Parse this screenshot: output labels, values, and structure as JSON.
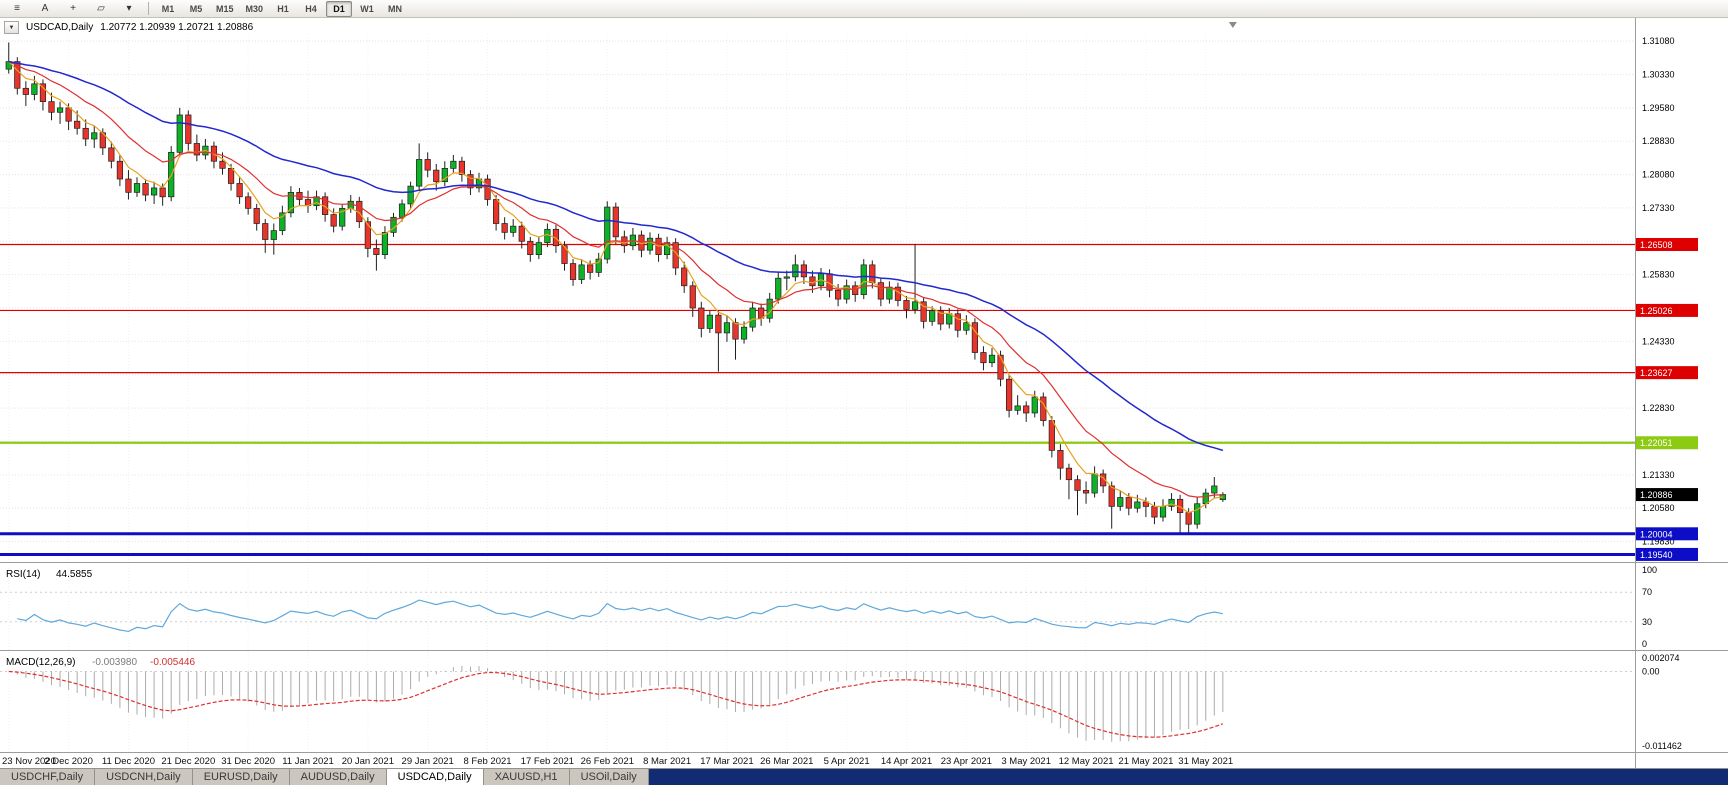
{
  "toolbar": {
    "icons": [
      {
        "name": "menu-icon",
        "glyph": "≡"
      },
      {
        "name": "cursor-a-icon",
        "glyph": "A"
      },
      {
        "name": "crosshair-icon",
        "glyph": "+"
      },
      {
        "name": "draw-tools-icon",
        "glyph": "▱"
      },
      {
        "name": "dropdown-caret-icon",
        "glyph": "▾"
      }
    ],
    "timeframes": [
      {
        "label": "M1",
        "active": false
      },
      {
        "label": "M5",
        "active": false
      },
      {
        "label": "M15",
        "active": false
      },
      {
        "label": "M30",
        "active": false
      },
      {
        "label": "H1",
        "active": false
      },
      {
        "label": "H4",
        "active": false
      },
      {
        "label": "D1",
        "active": true
      },
      {
        "label": "W1",
        "active": false
      },
      {
        "label": "MN",
        "active": false
      }
    ]
  },
  "chart": {
    "dropdown_glyph": "▼",
    "title_symbol": "USDCAD,Daily",
    "ohlc": "1.20772 1.20939 1.20721 1.20886"
  },
  "chart_data": {
    "type": "candlestick",
    "symbol": "USDCAD",
    "timeframe": "Daily",
    "title": "USDCAD,Daily",
    "current_bar": {
      "open": 1.20772,
      "high": 1.20939,
      "low": 1.20721,
      "close": 1.20886
    },
    "price_axis": {
      "min": 1.1937,
      "max": 1.316,
      "ticks": [
        "1.31080",
        "1.30330",
        "1.29580",
        "1.28830",
        "1.28080",
        "1.27330",
        "1.26580",
        "1.25830",
        "1.25080",
        "1.24330",
        "1.23580",
        "1.22830",
        "1.22080",
        "1.21330",
        "1.20580",
        "1.19830"
      ]
    },
    "x_labels": [
      "23 Nov 2020",
      "2 Dec 2020",
      "11 Dec 2020",
      "21 Dec 2020",
      "31 Dec 2020",
      "11 Jan 2021",
      "20 Jan 2021",
      "29 Jan 2021",
      "8 Feb 2021",
      "17 Feb 2021",
      "26 Feb 2021",
      "8 Mar 2021",
      "17 Mar 2021",
      "26 Mar 2021",
      "5 Apr 2021",
      "14 Apr 2021",
      "23 Apr 2021",
      "3 May 2021",
      "12 May 2021",
      "21 May 2021",
      "31 May 2021"
    ],
    "bars_per_label": 7,
    "up_color": "#0DB226",
    "down_color": "#E8352B",
    "wick_color": "#1f1f1f",
    "candles": [
      [
        1.3045,
        1.3105,
        1.3035,
        1.3062
      ],
      [
        1.3062,
        1.3072,
        1.2988,
        1.3002
      ],
      [
        1.3002,
        1.3018,
        1.2962,
        1.2988
      ],
      [
        1.2988,
        1.303,
        1.2975,
        1.3012
      ],
      [
        1.3012,
        1.3022,
        1.2952,
        1.2972
      ],
      [
        1.2972,
        1.2992,
        1.293,
        1.2948
      ],
      [
        1.2948,
        1.2972,
        1.2922,
        1.2958
      ],
      [
        1.2958,
        1.2968,
        1.2908,
        1.2928
      ],
      [
        1.2928,
        1.2952,
        1.2898,
        1.2912
      ],
      [
        1.2912,
        1.2932,
        1.2872,
        1.2888
      ],
      [
        1.2888,
        1.2918,
        1.2868,
        1.2902
      ],
      [
        1.2902,
        1.2912,
        1.2852,
        1.2868
      ],
      [
        1.2868,
        1.2882,
        1.2822,
        1.2838
      ],
      [
        1.2838,
        1.2852,
        1.2782,
        1.2798
      ],
      [
        1.2798,
        1.2818,
        1.2752,
        1.2768
      ],
      [
        1.2768,
        1.2802,
        1.2758,
        1.2788
      ],
      [
        1.2788,
        1.2798,
        1.2748,
        1.2762
      ],
      [
        1.2762,
        1.2792,
        1.2742,
        1.2778
      ],
      [
        1.2778,
        1.2788,
        1.2738,
        1.2758
      ],
      [
        1.2758,
        1.2872,
        1.2748,
        1.2858
      ],
      [
        1.2858,
        1.2958,
        1.2848,
        1.2942
      ],
      [
        1.2942,
        1.2952,
        1.2862,
        1.2878
      ],
      [
        1.2878,
        1.2898,
        1.2838,
        1.2852
      ],
      [
        1.2852,
        1.2888,
        1.2842,
        1.2872
      ],
      [
        1.2872,
        1.2882,
        1.2822,
        1.2838
      ],
      [
        1.2838,
        1.2858,
        1.2808,
        1.2822
      ],
      [
        1.2822,
        1.2832,
        1.2772,
        1.2788
      ],
      [
        1.2788,
        1.2802,
        1.2742,
        1.2758
      ],
      [
        1.2758,
        1.2768,
        1.2718,
        1.2732
      ],
      [
        1.2732,
        1.2742,
        1.2682,
        1.2698
      ],
      [
        1.2698,
        1.2708,
        1.2632,
        1.2662
      ],
      [
        1.2662,
        1.2698,
        1.2628,
        1.2682
      ],
      [
        1.2682,
        1.2738,
        1.2672,
        1.2722
      ],
      [
        1.2722,
        1.2782,
        1.2712,
        1.2768
      ],
      [
        1.2768,
        1.2778,
        1.2738,
        1.2752
      ],
      [
        1.2752,
        1.2772,
        1.2722,
        1.2738
      ],
      [
        1.2738,
        1.2772,
        1.2728,
        1.2758
      ],
      [
        1.2758,
        1.2768,
        1.2702,
        1.2718
      ],
      [
        1.2718,
        1.2732,
        1.2678,
        1.2692
      ],
      [
        1.2692,
        1.2742,
        1.2682,
        1.2732
      ],
      [
        1.2732,
        1.2762,
        1.2722,
        1.2748
      ],
      [
        1.2748,
        1.2758,
        1.2688,
        1.2702
      ],
      [
        1.2702,
        1.2712,
        1.2622,
        1.2642
      ],
      [
        1.2642,
        1.2662,
        1.2592,
        1.2628
      ],
      [
        1.2628,
        1.2692,
        1.2618,
        1.2678
      ],
      [
        1.2678,
        1.2722,
        1.2668,
        1.2712
      ],
      [
        1.2712,
        1.2752,
        1.2702,
        1.2742
      ],
      [
        1.2742,
        1.2792,
        1.2732,
        1.2782
      ],
      [
        1.2782,
        1.2878,
        1.2772,
        1.2842
      ],
      [
        1.2842,
        1.2858,
        1.2802,
        1.2818
      ],
      [
        1.2818,
        1.2832,
        1.2772,
        1.2792
      ],
      [
        1.2792,
        1.2838,
        1.2782,
        1.2822
      ],
      [
        1.2822,
        1.2852,
        1.2812,
        1.2838
      ],
      [
        1.2838,
        1.2848,
        1.2792,
        1.2808
      ],
      [
        1.2808,
        1.2818,
        1.2762,
        1.2778
      ],
      [
        1.2778,
        1.2812,
        1.2768,
        1.2798
      ],
      [
        1.2798,
        1.2808,
        1.2738,
        1.2752
      ],
      [
        1.2752,
        1.2762,
        1.2682,
        1.2698
      ],
      [
        1.2698,
        1.2712,
        1.2662,
        1.2678
      ],
      [
        1.2678,
        1.2708,
        1.2668,
        1.2692
      ],
      [
        1.2692,
        1.2702,
        1.2642,
        1.2658
      ],
      [
        1.2658,
        1.2668,
        1.2612,
        1.2628
      ],
      [
        1.2628,
        1.2668,
        1.2618,
        1.2655
      ],
      [
        1.2655,
        1.2698,
        1.2645,
        1.2685
      ],
      [
        1.2685,
        1.2695,
        1.2632,
        1.2648
      ],
      [
        1.2648,
        1.2658,
        1.2592,
        1.2608
      ],
      [
        1.2608,
        1.2618,
        1.2558,
        1.2572
      ],
      [
        1.2572,
        1.2618,
        1.2562,
        1.2605
      ],
      [
        1.2605,
        1.2615,
        1.2572,
        1.2588
      ],
      [
        1.2588,
        1.2632,
        1.2578,
        1.2618
      ],
      [
        1.2618,
        1.2748,
        1.2608,
        1.2735
      ],
      [
        1.2735,
        1.2745,
        1.2652,
        1.2668
      ],
      [
        1.2668,
        1.2682,
        1.2632,
        1.2648
      ],
      [
        1.2648,
        1.2688,
        1.2638,
        1.2672
      ],
      [
        1.2672,
        1.2682,
        1.2622,
        1.2638
      ],
      [
        1.2638,
        1.2678,
        1.2628,
        1.2665
      ],
      [
        1.2665,
        1.2675,
        1.2612,
        1.2628
      ],
      [
        1.2628,
        1.2668,
        1.2618,
        1.2655
      ],
      [
        1.2655,
        1.2665,
        1.2582,
        1.2598
      ],
      [
        1.2598,
        1.2612,
        1.2542,
        1.2558
      ],
      [
        1.2558,
        1.2568,
        1.2488,
        1.2508
      ],
      [
        1.2508,
        1.2522,
        1.2442,
        1.2462
      ],
      [
        1.2462,
        1.2502,
        1.2452,
        1.2492
      ],
      [
        1.2492,
        1.2502,
        1.2365,
        1.2452
      ],
      [
        1.2452,
        1.2492,
        1.2432,
        1.2475
      ],
      [
        1.2475,
        1.2485,
        1.2392,
        1.2438
      ],
      [
        1.2438,
        1.2478,
        1.2428,
        1.2465
      ],
      [
        1.2465,
        1.2522,
        1.2455,
        1.2508
      ],
      [
        1.2508,
        1.2518,
        1.2468,
        1.2485
      ],
      [
        1.2485,
        1.2542,
        1.2475,
        1.2528
      ],
      [
        1.2528,
        1.2588,
        1.2518,
        1.2575
      ],
      [
        1.2575,
        1.2592,
        1.2548,
        1.2578
      ],
      [
        1.2578,
        1.2628,
        1.2568,
        1.2605
      ],
      [
        1.2605,
        1.2615,
        1.2562,
        1.2578
      ],
      [
        1.2578,
        1.2592,
        1.2542,
        1.2558
      ],
      [
        1.2558,
        1.2598,
        1.2548,
        1.2585
      ],
      [
        1.2585,
        1.2595,
        1.2532,
        1.2548
      ],
      [
        1.2548,
        1.2562,
        1.2512,
        1.2528
      ],
      [
        1.2528,
        1.2572,
        1.2518,
        1.2558
      ],
      [
        1.2558,
        1.2568,
        1.2522,
        1.2538
      ],
      [
        1.2538,
        1.2618,
        1.2528,
        1.2605
      ],
      [
        1.2605,
        1.2615,
        1.2552,
        1.2565
      ],
      [
        1.2565,
        1.2575,
        1.2512,
        1.2528
      ],
      [
        1.2528,
        1.2568,
        1.2518,
        1.2555
      ],
      [
        1.2555,
        1.2565,
        1.2512,
        1.2525
      ],
      [
        1.2525,
        1.2535,
        1.2485,
        1.2505
      ],
      [
        1.2505,
        1.2652,
        1.2495,
        1.2522
      ],
      [
        1.2522,
        1.2532,
        1.2462,
        1.2478
      ],
      [
        1.2478,
        1.2512,
        1.2468,
        1.2502
      ],
      [
        1.2502,
        1.2512,
        1.2458,
        1.2472
      ],
      [
        1.2472,
        1.2508,
        1.2462,
        1.2495
      ],
      [
        1.2495,
        1.2505,
        1.2442,
        1.2458
      ],
      [
        1.2458,
        1.2492,
        1.2448,
        1.2475
      ],
      [
        1.2475,
        1.2485,
        1.2392,
        1.2408
      ],
      [
        1.2408,
        1.2422,
        1.2368,
        1.2385
      ],
      [
        1.2385,
        1.2418,
        1.2375,
        1.2402
      ],
      [
        1.2402,
        1.2412,
        1.2332,
        1.2348
      ],
      [
        1.2348,
        1.2358,
        1.2262,
        1.2278
      ],
      [
        1.2278,
        1.2312,
        1.2268,
        1.2288
      ],
      [
        1.2288,
        1.2298,
        1.2252,
        1.2272
      ],
      [
        1.2272,
        1.2322,
        1.2262,
        1.2308
      ],
      [
        1.2308,
        1.2318,
        1.2242,
        1.2255
      ],
      [
        1.2255,
        1.2265,
        1.2172,
        1.2188
      ],
      [
        1.2188,
        1.2202,
        1.2122,
        1.2148
      ],
      [
        1.2148,
        1.2158,
        1.2078,
        1.2122
      ],
      [
        1.2122,
        1.2132,
        1.2042,
        1.2098
      ],
      [
        1.2098,
        1.2118,
        1.2068,
        1.2092
      ],
      [
        1.2092,
        1.2152,
        1.2082,
        1.2135
      ],
      [
        1.2135,
        1.2145,
        1.2092,
        1.2108
      ],
      [
        1.2108,
        1.2118,
        1.2012,
        1.2062
      ],
      [
        1.2062,
        1.2098,
        1.2052,
        1.2082
      ],
      [
        1.2082,
        1.2092,
        1.2042,
        1.2058
      ],
      [
        1.2058,
        1.2088,
        1.2048,
        1.2072
      ],
      [
        1.2072,
        1.2082,
        1.2038,
        1.2062
      ],
      [
        1.2062,
        1.2072,
        1.2022,
        1.2038
      ],
      [
        1.2038,
        1.2078,
        1.2028,
        1.2062
      ],
      [
        1.2062,
        1.2092,
        1.2052,
        1.2078
      ],
      [
        1.2078,
        1.2088,
        1.2002,
        1.2048
      ],
      [
        1.2048,
        1.2058,
        1.1998,
        1.2022
      ],
      [
        1.2022,
        1.2082,
        1.2012,
        1.2068
      ],
      [
        1.2068,
        1.2102,
        1.2058,
        1.2092
      ],
      [
        1.2092,
        1.2128,
        1.2082,
        1.2108
      ],
      [
        1.20772,
        1.20939,
        1.20721,
        1.20886
      ]
    ],
    "moving_averages": [
      {
        "name": "ma-fast-orange",
        "period": 5,
        "color": "#E8A21E",
        "width": 1.2
      },
      {
        "name": "ma-mid-red",
        "period": 13,
        "color": "#E03030",
        "width": 1.2
      },
      {
        "name": "ma-slow-blue",
        "period": 34,
        "color": "#2228D0",
        "width": 1.5
      }
    ],
    "hlines": [
      {
        "price": 1.26508,
        "label": "1.26508",
        "color": "#DE0000",
        "width": 1.2
      },
      {
        "price": 1.25026,
        "label": "1.25026",
        "color": "#DE0000",
        "width": 1.2
      },
      {
        "price": 1.23627,
        "label": "1.23627",
        "color": "#DE0000",
        "width": 1.2
      },
      {
        "price": 1.22051,
        "label": "1.22051",
        "color": "#8CCB12",
        "width": 2.2
      },
      {
        "price": 1.20004,
        "label": "1.20004",
        "color": "#0D0DC8",
        "width": 3
      },
      {
        "price": 1.1954,
        "label": "1.19540",
        "color": "#0D0DC8",
        "width": 3
      }
    ],
    "price_badge": {
      "price": 1.20886,
      "label": "1.20886",
      "color": "#000000"
    },
    "indicators": {
      "rsi": {
        "label": "RSI(14)",
        "value": "44.5855",
        "period": 14,
        "color": "#5FA8DC",
        "levels": [
          "100",
          "70",
          "30",
          "0"
        ]
      },
      "macd": {
        "label": "MACD(12,26,9)",
        "value_main": "-0.003980",
        "value_signal": "-0.005446",
        "fast": 12,
        "slow": 26,
        "signal": 9,
        "hist_color": "#ABABAB",
        "signal_color": "#E03030",
        "levels": [
          "0.002074",
          "0.00",
          "-0.011462"
        ],
        "range": [
          -0.011462,
          0.002074
        ]
      }
    }
  },
  "tab_bar": {
    "right_fill_color": "#122C74",
    "tabs": [
      {
        "label": "USDCHF,Daily",
        "active": false
      },
      {
        "label": "USDCNH,Daily",
        "active": false
      },
      {
        "label": "EURUSD,Daily",
        "active": false
      },
      {
        "label": "AUDUSD,Daily",
        "active": false
      },
      {
        "label": "USDCAD,Daily",
        "active": true
      },
      {
        "label": "XAUUSD,H1",
        "active": false
      },
      {
        "label": "USOil,Daily",
        "active": false
      }
    ]
  }
}
